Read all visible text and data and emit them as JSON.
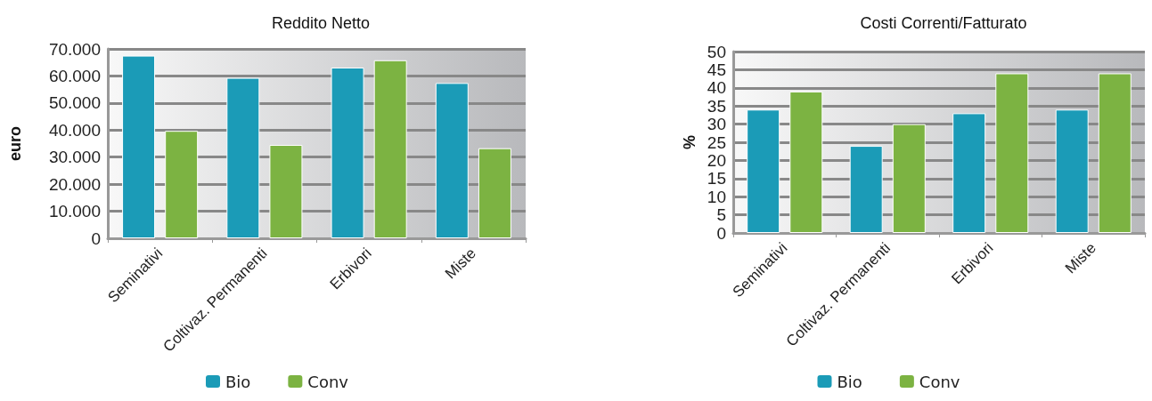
{
  "chart_data": [
    {
      "type": "bar",
      "title": "Reddito Netto",
      "ylabel": "euro",
      "categories": [
        "Seminativi",
        "Coltivaz. Permanenti",
        "Erbivori",
        "Miste"
      ],
      "series": [
        {
          "name": "Bio",
          "color": "#1b9bb7",
          "values": [
            67500,
            59300,
            63100,
            57400
          ]
        },
        {
          "name": "Conv",
          "color": "#7cb342",
          "values": [
            39700,
            34500,
            65800,
            33300
          ]
        }
      ],
      "ylim": [
        0,
        70000
      ],
      "yticks": [
        {
          "value": 0,
          "label": "0"
        },
        {
          "value": 10000,
          "label": "10.000"
        },
        {
          "value": 20000,
          "label": "20.000"
        },
        {
          "value": 30000,
          "label": "30.000"
        },
        {
          "value": 40000,
          "label": "40.000"
        },
        {
          "value": 50000,
          "label": "50.000"
        },
        {
          "value": 60000,
          "label": "60.000"
        },
        {
          "value": 70000,
          "label": "70.000"
        }
      ],
      "grid": "y",
      "legend": "bottom"
    },
    {
      "type": "bar",
      "title": "Costi Correnti/Fatturato",
      "ylabel": "%",
      "categories": [
        "Seminativi",
        "Coltivaz. Permanenti",
        "Erbivori",
        "Miste"
      ],
      "series": [
        {
          "name": "Bio",
          "color": "#1b9bb7",
          "values": [
            34,
            24,
            33,
            34
          ]
        },
        {
          "name": "Conv",
          "color": "#7cb342",
          "values": [
            39,
            30,
            44,
            44
          ]
        }
      ],
      "ylim": [
        0,
        50
      ],
      "yticks": [
        0,
        5,
        10,
        15,
        20,
        25,
        30,
        35,
        40,
        45,
        50
      ],
      "grid": "y",
      "legend": "bottom"
    }
  ]
}
